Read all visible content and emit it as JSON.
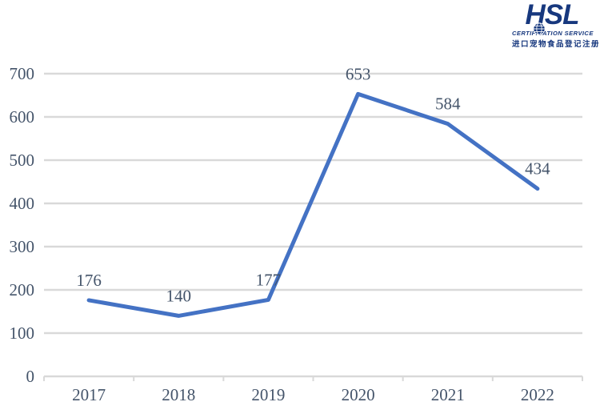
{
  "logo": {
    "brand": "HSL",
    "subtitle": "CERTIFICATION SERVICE",
    "tagline": "进口宠物食品登记注册",
    "brand_color": "#17387E"
  },
  "chart_data": {
    "type": "line",
    "categories": [
      "2017",
      "2018",
      "2019",
      "2020",
      "2021",
      "2022"
    ],
    "values": [
      176,
      140,
      177,
      653,
      584,
      434
    ],
    "title": "",
    "xlabel": "",
    "ylabel": "",
    "ylim": [
      0,
      700
    ],
    "ytick_step": 100,
    "grid": true,
    "legend": false,
    "data_labels": true,
    "line_color": "#4472C4",
    "grid_color": "#D9D9D9",
    "label_color": "#44546A"
  }
}
